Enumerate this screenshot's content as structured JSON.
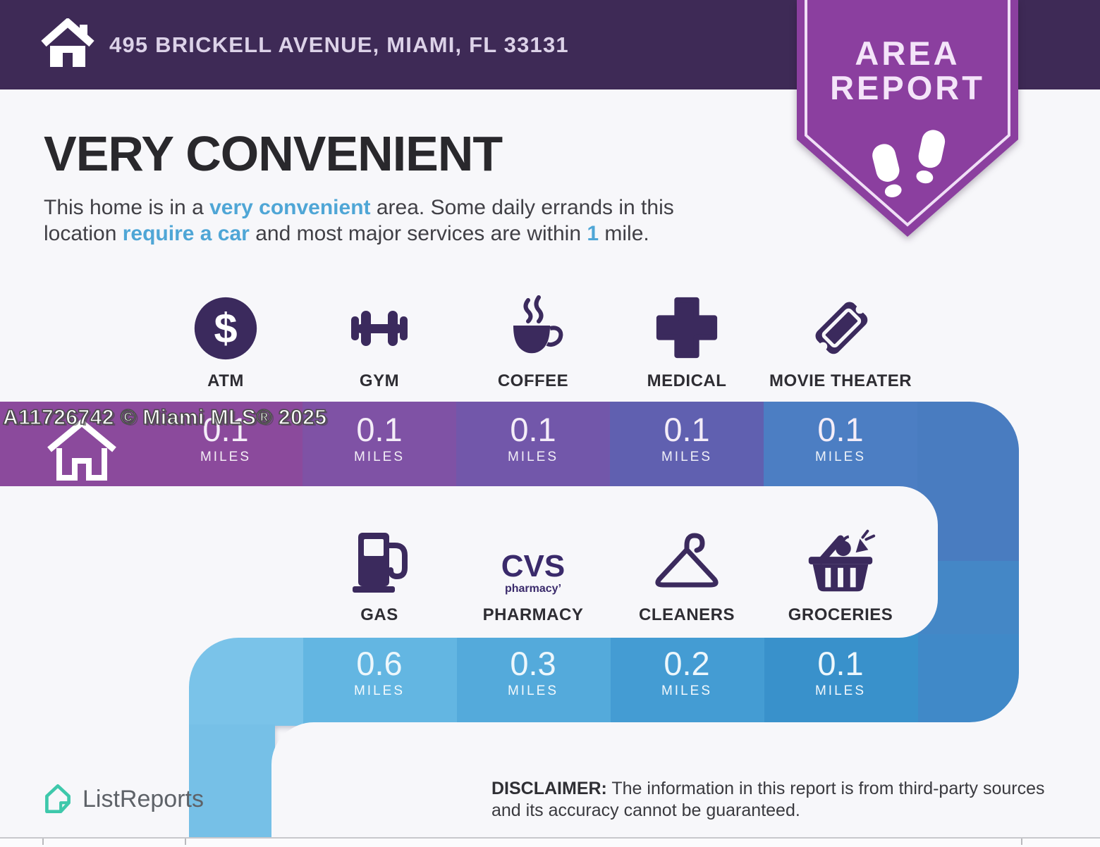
{
  "header": {
    "address": "495 BRICKELL AVENUE, MIAMI, FL 33131"
  },
  "badge": {
    "line1": "AREA",
    "line2": "REPORT"
  },
  "main": {
    "title": "VERY CONVENIENT",
    "subtitle_parts": [
      {
        "t": "This home is in a ",
        "h": false
      },
      {
        "t": "very convenient",
        "h": true
      },
      {
        "t": " area. Some daily errands in this\nlocation ",
        "h": false
      },
      {
        "t": "require a car",
        "h": true
      },
      {
        "t": " and most major services are within ",
        "h": false
      },
      {
        "t": "1",
        "h": true
      },
      {
        "t": " mile.",
        "h": false
      }
    ]
  },
  "units_label": "MILES",
  "amenities_row1": [
    {
      "label": "ATM",
      "miles": "0.1",
      "icon": "atm-icon"
    },
    {
      "label": "GYM",
      "miles": "0.1",
      "icon": "gym-icon"
    },
    {
      "label": "COFFEE",
      "miles": "0.1",
      "icon": "coffee-icon"
    },
    {
      "label": "MEDICAL",
      "miles": "0.1",
      "icon": "medical-icon"
    },
    {
      "label": "MOVIE THEATER",
      "miles": "0.1",
      "icon": "movie-theater-icon"
    }
  ],
  "amenities_row2": [
    {
      "label": "GAS",
      "miles": "0.6",
      "icon": "gas-icon"
    },
    {
      "label": "PHARMACY",
      "miles": "0.3",
      "icon": "pharmacy-cvs-icon",
      "logo_line1": "CVS",
      "logo_line2": "pharmacy’"
    },
    {
      "label": "CLEANERS",
      "miles": "0.2",
      "icon": "cleaners-icon"
    },
    {
      "label": "GROCERIES",
      "miles": "0.1",
      "icon": "groceries-icon"
    }
  ],
  "watermark": "A11726742 © Miami MLS® 2025",
  "footer": {
    "brand": "ListReports",
    "disclaimer_label": "DISCLAIMER:",
    "disclaimer_text": " The information in this report is from third-party sources and its accuracy cannot be guaranteed."
  },
  "colors": {
    "header_bg": "#3E2A56",
    "badge_purple": "#8B3F9F",
    "icon_purple": "#3B2A5D",
    "highlight_blue": "#4FA6D6",
    "logo_teal": "#3EC8AB",
    "band1_segments": [
      "#8B4A9C",
      "#7F52A5",
      "#7257AA",
      "#6060B0",
      "#4C7EC3",
      "#497CC0"
    ],
    "band2_segments": [
      "#7AC3E9",
      "#63B6E2",
      "#54AADB",
      "#449CD3",
      "#3991CB",
      "#4089C8"
    ]
  }
}
